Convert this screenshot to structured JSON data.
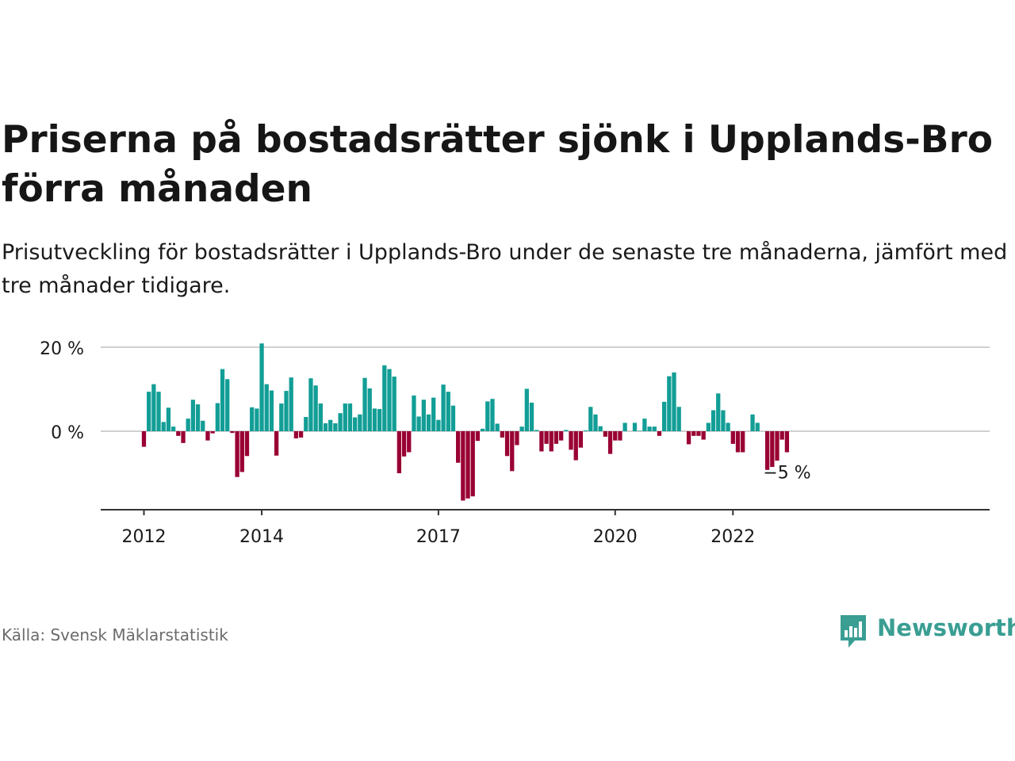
{
  "title": "Priserna på bostadsrätter sjönk i Upplands-Bro förra månaden",
  "subtitle": "Prisutveckling för bostadsrätter i Upplands-Bro under de senaste tre månaderna, jämfört med tre månader tidigare.",
  "source": "Källa: Svensk Mäklarstatistik",
  "brand": "Newsworthy",
  "colors": {
    "positive": "#129e96",
    "negative": "#990033",
    "brand": "#3a9e93",
    "grid": "#d0d0d0",
    "axis": "#333333"
  },
  "chart_data": {
    "type": "bar",
    "x_start": "2012-01",
    "frequency": "monthly",
    "ylim": [
      -19,
      21
    ],
    "y_ticks": [
      0,
      20
    ],
    "y_tick_labels": [
      "0 %",
      "20 %"
    ],
    "x_ticks": [
      {
        "year": 2012,
        "label": "2012"
      },
      {
        "year": 2014,
        "label": "2014"
      },
      {
        "year": 2017,
        "label": "2017"
      },
      {
        "year": 2020,
        "label": "2020"
      },
      {
        "year": 2022,
        "label": "2022"
      }
    ],
    "last_value_label": "−5 %",
    "values": [
      -3.7,
      9.4,
      11.2,
      9.4,
      2.2,
      5.6,
      1.1,
      -1.1,
      -2.8,
      3.0,
      7.5,
      6.4,
      2.5,
      -2.2,
      -0.5,
      6.7,
      14.8,
      12.4,
      -0.4,
      -10.9,
      -9.7,
      -5.9,
      5.7,
      5.4,
      20.9,
      11.2,
      9.7,
      -5.8,
      6.6,
      9.6,
      12.8,
      -1.7,
      -1.5,
      3.4,
      12.6,
      10.9,
      6.6,
      1.9,
      2.7,
      1.9,
      4.3,
      6.6,
      6.6,
      3.3,
      4.0,
      12.7,
      10.2,
      5.4,
      5.3,
      15.7,
      14.8,
      13.0,
      -10.0,
      -6.0,
      -5.0,
      8.5,
      3.5,
      7.5,
      4.0,
      8.0,
      2.7,
      11.1,
      9.4,
      6.1,
      -7.5,
      -16.5,
      -16.0,
      -15.5,
      -2.3,
      0.6,
      7.1,
      7.7,
      1.8,
      -1.5,
      -5.9,
      -9.5,
      -3.3,
      1.1,
      10.1,
      6.8,
      0.3,
      -4.8,
      -3.0,
      -4.8,
      -3.0,
      -2.2,
      0.3,
      -4.4,
      -6.9,
      -3.9,
      0.2,
      5.8,
      4.0,
      1.2,
      -1.3,
      -5.4,
      -2.2,
      -2.2,
      2.0,
      0.0,
      2.0,
      0.1,
      3.0,
      1.1,
      1.1,
      -1.1,
      7.0,
      13.1,
      14.0,
      5.8,
      0.0,
      -3.1,
      -1.1,
      -1.1,
      -2.0,
      2.0,
      5.0,
      9.0,
      5.0,
      2.0,
      -3.0,
      -5.0,
      -5.0,
      0.0,
      4.0,
      2.0,
      0.0,
      -9.2,
      -8.5,
      -7.0,
      -2.0,
      -5.0
    ]
  }
}
